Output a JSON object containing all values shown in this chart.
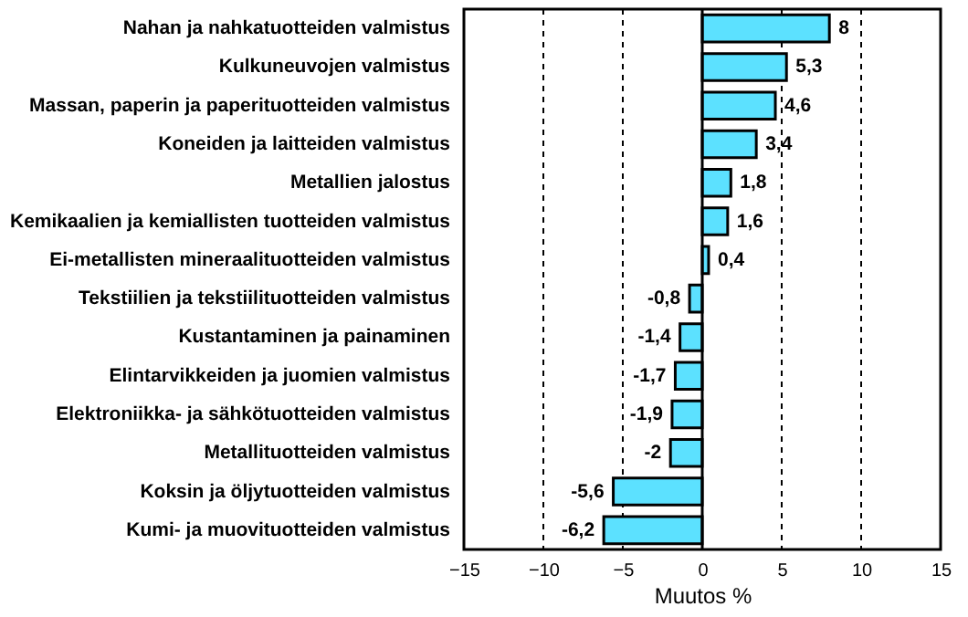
{
  "chart_data": {
    "type": "bar",
    "orientation": "horizontal",
    "xlabel": "Muutos %",
    "categories": [
      "Nahan ja nahkatuotteiden valmistus",
      "Kulkuneuvojen valmistus",
      "Massan, paperin ja paperituotteiden valmistus",
      "Koneiden ja laitteiden valmistus",
      "Metallien jalostus",
      "Kemikaalien ja kemiallisten tuotteiden valmistus",
      "Ei-metallisten mineraalituotteiden valmistus",
      "Tekstiilien ja tekstiilituotteiden valmistus",
      "Kustantaminen ja painaminen",
      "Elintarvikkeiden ja juomien valmistus",
      "Elektroniikka- ja sähkötuotteiden valmistus",
      "Metallituotteiden valmistus",
      "Koksin ja öljytuotteiden valmistus",
      "Kumi- ja muovituotteiden valmistus"
    ],
    "values": [
      8,
      5.3,
      4.6,
      3.4,
      1.8,
      1.6,
      0.4,
      -0.8,
      -1.4,
      -1.7,
      -1.9,
      -2,
      -5.6,
      -6.2
    ],
    "value_labels": [
      "8",
      "5,3",
      "4,6",
      "3,4",
      "1,8",
      "1,6",
      "0,4",
      "-0,8",
      "-1,4",
      "-1,7",
      "-1,9",
      "-2",
      "-5,6",
      "-6,2"
    ],
    "color": "#5ce1ff",
    "xlim": [
      -15,
      15
    ],
    "xticks": [
      -15,
      -10,
      -5,
      0,
      5,
      10,
      15
    ],
    "grid": "x",
    "ref_lines": [
      {
        "axis": "x",
        "value": 0,
        "color": "#000000"
      }
    ]
  }
}
